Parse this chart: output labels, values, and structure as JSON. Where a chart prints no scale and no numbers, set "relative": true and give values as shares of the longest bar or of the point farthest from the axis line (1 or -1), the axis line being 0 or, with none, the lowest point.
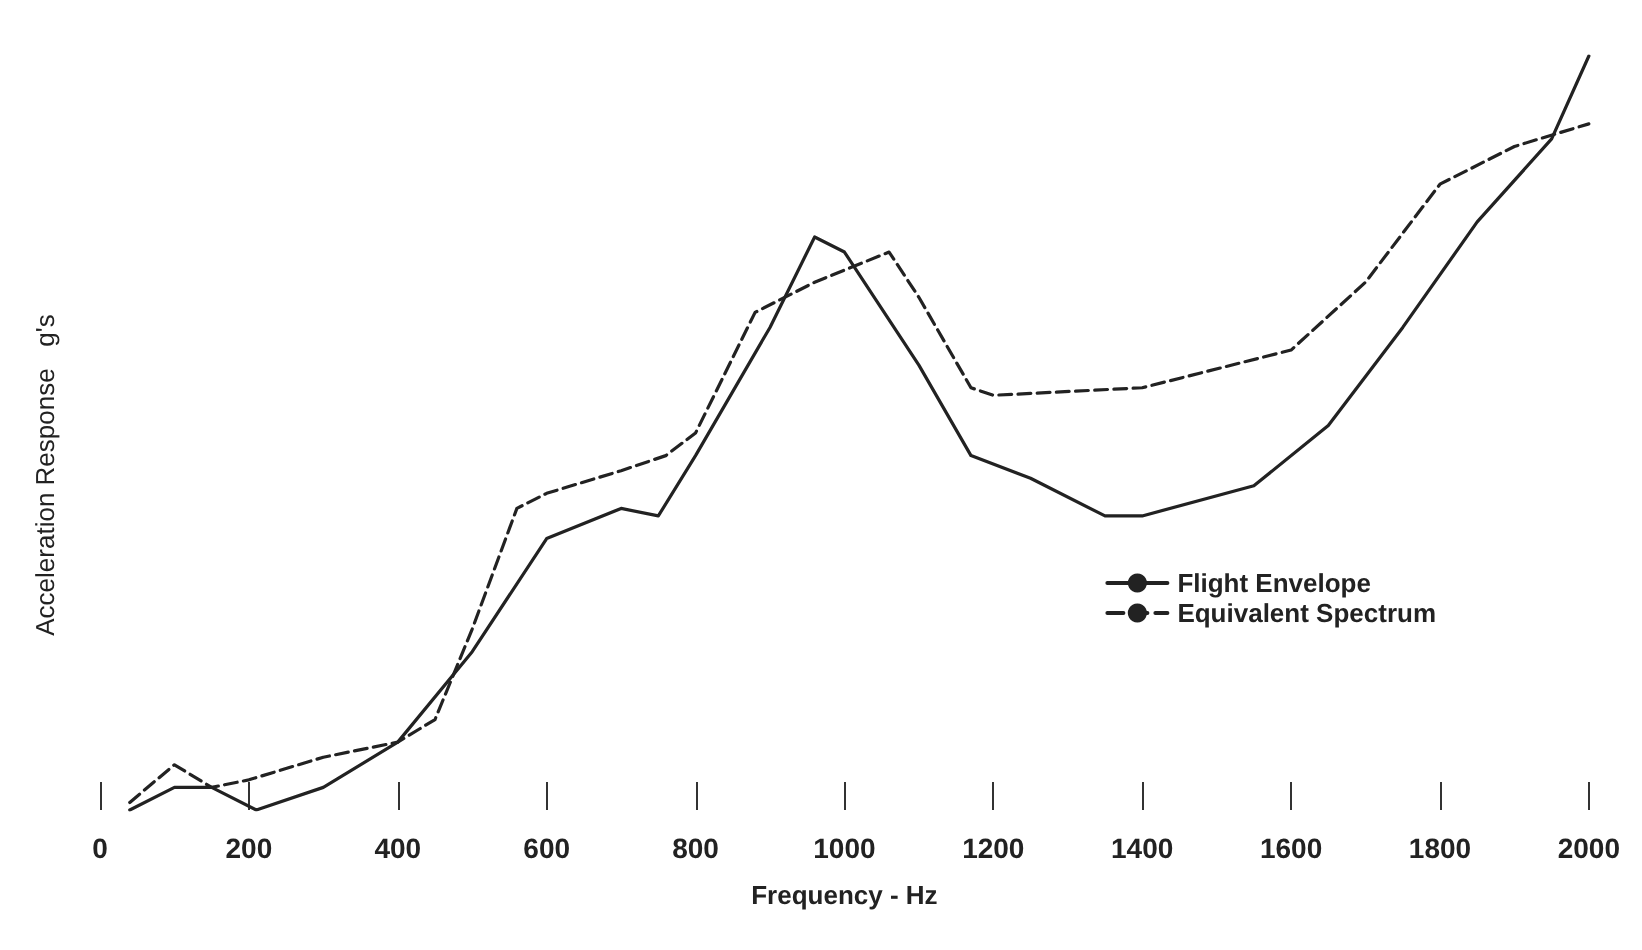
{
  "chart_data": {
    "type": "line",
    "xlabel": "Frequency - Hz",
    "ylabel": "Acceleration Response   g's",
    "relative": true,
    "xlim": [
      0,
      2000
    ],
    "xticks": [
      0,
      200,
      400,
      600,
      800,
      1000,
      1200,
      1400,
      1600,
      1800,
      2000
    ],
    "grid": false,
    "legend": "right",
    "marker": "none",
    "series": [
      {
        "name": "Flight Envelope",
        "color": "#222222",
        "line_style": "solid",
        "x": [
          40,
          100,
          150,
          210,
          300,
          400,
          500,
          600,
          700,
          750,
          800,
          900,
          960,
          1000,
          1100,
          1170,
          1250,
          1350,
          1400,
          1550,
          1650,
          1750,
          1850,
          1950,
          2000
        ],
        "values": [
          0,
          0.03,
          0.03,
          0,
          0.03,
          0.09,
          0.21,
          0.36,
          0.4,
          0.39,
          0.47,
          0.64,
          0.76,
          0.74,
          0.59,
          0.47,
          0.44,
          0.39,
          0.39,
          0.43,
          0.51,
          0.64,
          0.78,
          0.89,
          1
        ]
      },
      {
        "name": "Equivalent Spectrum",
        "color": "#222222",
        "line_style": "dashed",
        "x": [
          40,
          100,
          150,
          200,
          300,
          400,
          450,
          500,
          560,
          600,
          700,
          760,
          800,
          880,
          960,
          1060,
          1100,
          1170,
          1200,
          1400,
          1600,
          1700,
          1800,
          1900,
          2000
        ],
        "values": [
          0.01,
          0.06,
          0.03,
          0.04,
          0.07,
          0.09,
          0.12,
          0.24,
          0.4,
          0.42,
          0.45,
          0.47,
          0.5,
          0.66,
          0.7,
          0.74,
          0.68,
          0.56,
          0.55,
          0.56,
          0.61,
          0.7,
          0.83,
          0.88,
          0.91
        ]
      }
    ]
  }
}
